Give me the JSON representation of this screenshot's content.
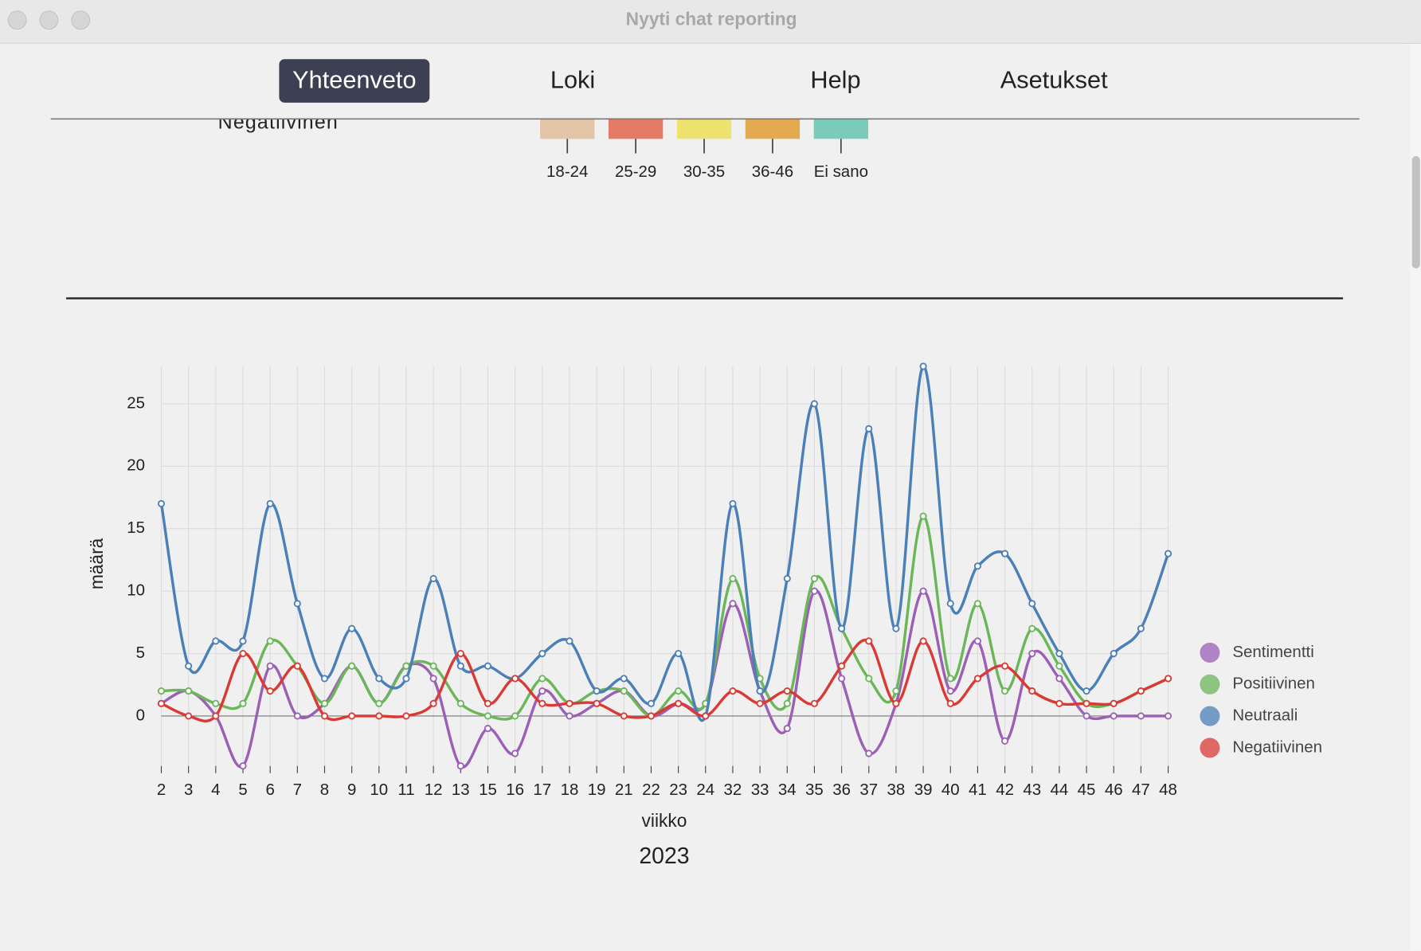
{
  "window_title": "Nyyti chat reporting",
  "nav": [
    "Yhteenveto",
    "Loki",
    "Help",
    "Asetukset"
  ],
  "active_nav": "Yhteenveto",
  "upper_chart": {
    "cut_label": "Negatiivinen",
    "age_groups": [
      {
        "label": "18-24",
        "color": "#e4c4a6"
      },
      {
        "label": "25-29",
        "color": "#e57a66"
      },
      {
        "label": "30-35",
        "color": "#eee26f"
      },
      {
        "label": "36-46",
        "color": "#e3aa4f"
      },
      {
        "label": "Ei sano",
        "color": "#7acbba"
      }
    ]
  },
  "chart_data": {
    "type": "line",
    "subtitle": "2023",
    "xlabel": "viikko",
    "ylabel": "määrä",
    "categories": [
      "2",
      "3",
      "4",
      "5",
      "6",
      "7",
      "8",
      "9",
      "10",
      "11",
      "12",
      "13",
      "15",
      "16",
      "17",
      "18",
      "19",
      "21",
      "22",
      "23",
      "24",
      "32",
      "33",
      "34",
      "35",
      "36",
      "37",
      "38",
      "39",
      "40",
      "41",
      "42",
      "43",
      "44",
      "45",
      "46",
      "47",
      "48"
    ],
    "ylim": [
      -4,
      28
    ],
    "yticks": [
      0,
      5,
      10,
      15,
      20,
      25
    ],
    "grid": true,
    "legend": "right",
    "series": [
      {
        "name": "Sentimentti",
        "color": "#9b5fb5",
        "values": [
          1,
          2,
          0,
          -4,
          4,
          0,
          1,
          4,
          1,
          4,
          3,
          -4,
          -1,
          -3,
          2,
          0,
          1,
          2,
          0,
          1,
          1,
          9,
          2,
          -1,
          10,
          3,
          -3,
          1,
          10,
          2,
          6,
          -2,
          5,
          3,
          0,
          0,
          0,
          0
        ]
      },
      {
        "name": "Positiivinen",
        "color": "#6cb65a",
        "values": [
          2,
          2,
          1,
          1,
          6,
          4,
          1,
          4,
          1,
          4,
          4,
          1,
          0,
          0,
          3,
          1,
          2,
          2,
          0,
          2,
          1,
          11,
          3,
          1,
          11,
          7,
          3,
          2,
          16,
          3,
          9,
          2,
          7,
          4,
          1,
          1,
          2,
          3
        ]
      },
      {
        "name": "Neutraali",
        "color": "#4a7fb8",
        "values": [
          17,
          4,
          6,
          6,
          17,
          9,
          3,
          7,
          3,
          3,
          11,
          4,
          4,
          3,
          5,
          6,
          2,
          3,
          1,
          5,
          0,
          17,
          2,
          11,
          25,
          7,
          23,
          7,
          28,
          9,
          12,
          13,
          9,
          5,
          2,
          5,
          7,
          13
        ]
      },
      {
        "name": "Negatiivinen",
        "color": "#d93a35",
        "values": [
          1,
          0,
          0,
          5,
          2,
          4,
          0,
          0,
          0,
          0,
          1,
          5,
          1,
          3,
          1,
          1,
          1,
          0,
          0,
          1,
          0,
          2,
          1,
          2,
          1,
          4,
          6,
          1,
          6,
          1,
          3,
          4,
          2,
          1,
          1,
          1,
          2,
          3
        ]
      }
    ]
  }
}
